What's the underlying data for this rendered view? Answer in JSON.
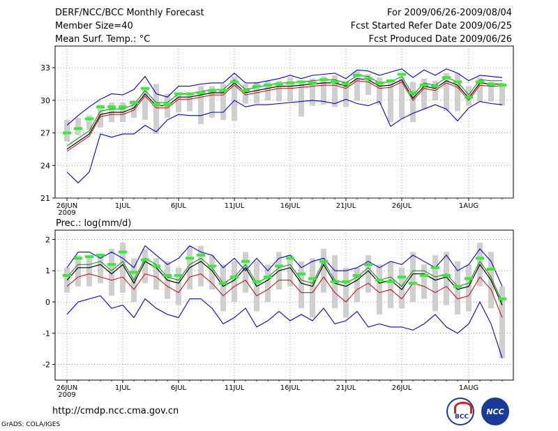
{
  "header": {
    "title": "DERF/NCC/BCC Monthly Forecast",
    "member_size": "Member Size=40",
    "variable": "Mean Surf. Temp.: °C",
    "forecast_range": "For 2009/06/26-2009/08/04",
    "fcst_started": "Fcst Started Refer Date 2009/06/25",
    "fcst_produced": "Fcst Produced Date 2009/06/26"
  },
  "footer": {
    "url": "http://cmdp.ncc.cma.gov.cn",
    "credit": "GrADS: COLA/IGES",
    "logo_bcc_text": "BCC",
    "logo_ncc_text": "NCC"
  },
  "colors": {
    "envelope": "#0000cc",
    "mean": "#000000",
    "percentile_low": "#cc0000",
    "percentile_high": "#008800",
    "observed": "#33ee33",
    "spread_bar": "#cfcfcf",
    "grid": "#777777"
  },
  "chart_data": [
    {
      "type": "line",
      "title": "Mean Surf. Temp.: °C",
      "ylim": [
        21,
        35
      ],
      "yticks": [
        21,
        24,
        27,
        30,
        33
      ],
      "x_tick_labels": [
        "26JUN",
        "1JUL",
        "6JUL",
        "11JUL",
        "16JUL",
        "21JUL",
        "26JUL",
        "1AUG"
      ],
      "x_tick_days": [
        0,
        5,
        10,
        15,
        20,
        25,
        30,
        36
      ],
      "x_year_label": "2009",
      "days": 40,
      "series": [
        {
          "name": "ensemble max",
          "values": [
            23.4,
            22.4,
            23.4,
            26.9,
            26.6,
            26.9,
            26.9,
            27.7,
            27.1,
            28.2,
            28.7,
            28.6,
            28.6,
            28.9,
            28.9,
            30.0,
            29.4,
            29.6,
            29.6,
            29.7,
            29.8,
            29.9,
            30.0,
            29.9,
            29.7,
            30.1,
            29.7,
            29.5,
            29.9,
            27.6,
            28.3,
            28.8,
            29.2,
            29.6,
            29.2,
            28.1,
            29.3,
            29.9,
            29.7,
            29.6
          ]
        },
        {
          "name": "ensemble min",
          "values": [
            27.7,
            28.6,
            29.4,
            30.1,
            30.6,
            30.5,
            31.0,
            32.2,
            30.6,
            30.3,
            31.3,
            31.3,
            31.5,
            31.6,
            31.6,
            32.5,
            31.6,
            31.6,
            31.8,
            32.0,
            32.3,
            32.0,
            32.3,
            32.4,
            32.5,
            32.0,
            32.8,
            32.7,
            32.3,
            32.6,
            32.9,
            32.1,
            32.8,
            32.3,
            32.9,
            32.5,
            31.8,
            32.3,
            32.2,
            32.1
          ]
        },
        {
          "name": "ensemble mean",
          "values": [
            25.5,
            26.2,
            26.9,
            28.7,
            28.9,
            28.9,
            29.3,
            30.6,
            29.5,
            29.5,
            30.3,
            30.3,
            30.5,
            30.7,
            30.7,
            31.6,
            30.7,
            30.9,
            31.1,
            31.3,
            31.3,
            31.4,
            31.5,
            31.6,
            31.6,
            31.3,
            32.0,
            31.9,
            31.3,
            31.4,
            31.9,
            30.2,
            31.3,
            31.1,
            31.8,
            31.4,
            30.2,
            31.6,
            31.5,
            31.5
          ]
        },
        {
          "name": "lower percentile",
          "values": [
            25.3,
            26.0,
            26.7,
            28.5,
            28.7,
            28.7,
            29.1,
            30.4,
            29.3,
            29.3,
            30.1,
            30.1,
            30.3,
            30.5,
            30.5,
            31.4,
            30.5,
            30.7,
            30.9,
            31.1,
            31.1,
            31.2,
            31.3,
            31.4,
            31.4,
            31.1,
            31.8,
            31.7,
            31.1,
            31.2,
            31.7,
            30.0,
            31.1,
            30.9,
            31.6,
            31.2,
            30.0,
            31.4,
            31.3,
            31.3
          ]
        },
        {
          "name": "upper percentile",
          "values": [
            25.8,
            26.5,
            27.2,
            29.0,
            29.2,
            29.2,
            29.6,
            30.9,
            29.8,
            29.8,
            30.6,
            30.6,
            30.8,
            31.0,
            31.0,
            31.9,
            31.0,
            31.2,
            31.4,
            31.6,
            31.6,
            31.7,
            31.8,
            31.9,
            31.9,
            31.6,
            32.3,
            32.2,
            31.6,
            31.7,
            32.2,
            30.5,
            31.6,
            31.4,
            32.1,
            31.7,
            30.5,
            31.9,
            31.8,
            31.8
          ]
        },
        {
          "name": "observed",
          "values": [
            27.0,
            27.4,
            28.3,
            29.4,
            29.4,
            29.4,
            29.8,
            31.1,
            29.6,
            29.6,
            30.6,
            30.6,
            30.7,
            30.9,
            30.9,
            31.7,
            30.9,
            31.3,
            31.4,
            31.5,
            31.6,
            31.7,
            31.6,
            31.9,
            31.7,
            31.5,
            32.3,
            32.0,
            31.6,
            31.8,
            32.4,
            30.7,
            31.4,
            31.3,
            32.1,
            31.7,
            30.3,
            31.7,
            31.5,
            31.4
          ]
        },
        {
          "name": "spread bar low",
          "values": [
            26.2,
            26.8,
            27.3,
            27.5,
            28.0,
            28.0,
            28.4,
            28.2,
            26.9,
            28.4,
            28.9,
            29.0,
            27.8,
            28.4,
            28.2,
            28.1,
            29.7,
            29.7,
            30.0,
            29.9,
            29.9,
            28.5,
            29.5,
            29.6,
            29.4,
            29.4,
            30.0,
            30.5,
            29.6,
            28.0,
            28.3,
            28.0,
            29.2,
            30.0,
            29.0,
            29.0,
            29.5,
            29.9,
            29.9,
            29.5
          ]
        },
        {
          "name": "spread bar high",
          "values": [
            28.2,
            28.4,
            28.6,
            29.6,
            29.8,
            29.8,
            30.0,
            31.1,
            31.5,
            30.6,
            30.7,
            30.5,
            31.3,
            31.3,
            31.5,
            32.2,
            31.5,
            31.7,
            31.8,
            31.8,
            32.1,
            31.8,
            32.0,
            32.2,
            32.3,
            31.8,
            32.7,
            32.4,
            32.1,
            31.7,
            32.1,
            31.7,
            32.0,
            31.8,
            32.5,
            32.5,
            31.3,
            32.1,
            31.7,
            31.6
          ]
        }
      ]
    },
    {
      "type": "line",
      "title": "Prec.: log(mm/d)",
      "ylim": [
        -2.5,
        2.3
      ],
      "yticks": [
        -2,
        -1,
        0,
        1,
        2
      ],
      "x_tick_labels": [
        "26JUN",
        "1JUL",
        "6JUL",
        "11JUL",
        "16JUL",
        "21JUL",
        "26JUL",
        "1AUG"
      ],
      "x_tick_days": [
        0,
        5,
        10,
        15,
        20,
        25,
        30,
        36
      ],
      "x_year_label": "2009",
      "days": 40,
      "series": [
        {
          "name": "ensemble max",
          "values": [
            1.1,
            1.6,
            1.6,
            1.4,
            1.6,
            1.4,
            1.1,
            1.8,
            1.5,
            1.2,
            1.4,
            1.8,
            1.6,
            1.5,
            1.1,
            1.4,
            1.0,
            1.4,
            1.0,
            1.4,
            1.5,
            1.1,
            1.3,
            1.4,
            1.0,
            1.0,
            1.1,
            1.3,
            1.1,
            1.3,
            1.2,
            1.5,
            1.3,
            1.1,
            1.5,
            1.0,
            1.2,
            1.7,
            1.3,
            0.5
          ]
        },
        {
          "name": "ensemble min",
          "values": [
            -0.4,
            0.0,
            0.1,
            0.2,
            -0.2,
            -0.1,
            -0.5,
            0.1,
            -0.2,
            -0.4,
            -0.5,
            0.1,
            0.1,
            -0.2,
            -0.7,
            -0.5,
            -0.2,
            -0.8,
            -0.6,
            -0.3,
            -0.6,
            -0.4,
            -0.6,
            -0.2,
            -0.7,
            -0.6,
            -0.3,
            -0.8,
            -0.7,
            -0.8,
            -0.8,
            -0.9,
            -0.7,
            -0.4,
            -0.8,
            -1.0,
            -0.7,
            0.0,
            -0.7,
            -1.8
          ]
        },
        {
          "name": "ensemble mean",
          "values": [
            0.7,
            1.1,
            1.1,
            1.2,
            0.9,
            1.2,
            0.6,
            1.3,
            1.1,
            0.7,
            0.6,
            1.1,
            1.3,
            1.0,
            0.5,
            0.7,
            1.1,
            0.5,
            0.7,
            1.0,
            1.1,
            0.6,
            0.5,
            1.2,
            0.6,
            0.5,
            0.7,
            1.0,
            0.6,
            0.7,
            0.4,
            0.9,
            0.9,
            0.7,
            0.8,
            0.4,
            0.5,
            1.2,
            0.7,
            -0.1
          ]
        },
        {
          "name": "lower percentile",
          "values": [
            0.5,
            0.8,
            0.9,
            0.8,
            0.7,
            0.8,
            0.4,
            0.9,
            0.8,
            0.5,
            0.3,
            0.8,
            0.9,
            0.6,
            0.2,
            0.5,
            0.7,
            0.2,
            0.4,
            0.7,
            0.7,
            0.3,
            0.3,
            0.8,
            0.3,
            0.0,
            0.4,
            0.6,
            0.3,
            0.4,
            0.1,
            0.6,
            0.5,
            0.3,
            0.5,
            0.1,
            0.2,
            0.8,
            0.4,
            -0.5
          ]
        },
        {
          "name": "upper percentile",
          "values": [
            0.8,
            1.2,
            1.2,
            1.3,
            1.0,
            1.3,
            0.7,
            1.4,
            1.2,
            0.8,
            0.7,
            1.2,
            1.4,
            1.1,
            0.6,
            0.8,
            1.2,
            0.6,
            0.8,
            1.1,
            1.2,
            0.7,
            0.6,
            1.3,
            0.7,
            0.6,
            0.8,
            1.1,
            0.7,
            0.8,
            0.5,
            1.0,
            1.0,
            0.8,
            0.9,
            0.5,
            0.6,
            1.3,
            0.8,
            0.0
          ]
        },
        {
          "name": "observed",
          "values": [
            0.85,
            1.4,
            1.45,
            1.5,
            1.2,
            1.6,
            0.95,
            1.35,
            1.15,
            0.85,
            0.85,
            1.4,
            1.5,
            1.15,
            0.6,
            0.8,
            1.3,
            0.65,
            0.8,
            1.15,
            1.4,
            0.9,
            0.75,
            1.3,
            0.65,
            0.65,
            0.85,
            1.2,
            0.7,
            0.65,
            0.8,
            0.6,
            0.85,
            1.1,
            0.85,
            0.5,
            0.75,
            1.4,
            1.05,
            0.1
          ]
        },
        {
          "name": "spread bar low",
          "values": [
            0.3,
            0.5,
            0.5,
            0.6,
            0.2,
            0.3,
            0.0,
            0.6,
            0.4,
            0.1,
            -0.1,
            0.4,
            0.5,
            0.4,
            -0.3,
            0.0,
            0.3,
            -0.3,
            0.0,
            0.4,
            0.5,
            -0.2,
            -0.5,
            0.3,
            -0.2,
            -0.5,
            0.0,
            0.3,
            -0.4,
            -0.2,
            -0.2,
            0.0,
            0.1,
            -0.3,
            -0.1,
            -0.4,
            -0.3,
            0.5,
            -0.2,
            -1.8
          ]
        },
        {
          "name": "spread bar high",
          "values": [
            1.1,
            1.5,
            1.5,
            1.5,
            1.7,
            1.9,
            1.4,
            1.7,
            1.4,
            1.3,
            1.1,
            1.8,
            1.8,
            1.5,
            1.2,
            1.3,
            1.6,
            1.3,
            1.2,
            1.6,
            1.5,
            1.3,
            1.4,
            1.7,
            1.5,
            1.1,
            1.1,
            1.5,
            1.2,
            1.3,
            1.1,
            1.6,
            1.2,
            1.5,
            1.6,
            1.3,
            1.2,
            1.9,
            1.6,
            0.5
          ]
        }
      ]
    }
  ]
}
